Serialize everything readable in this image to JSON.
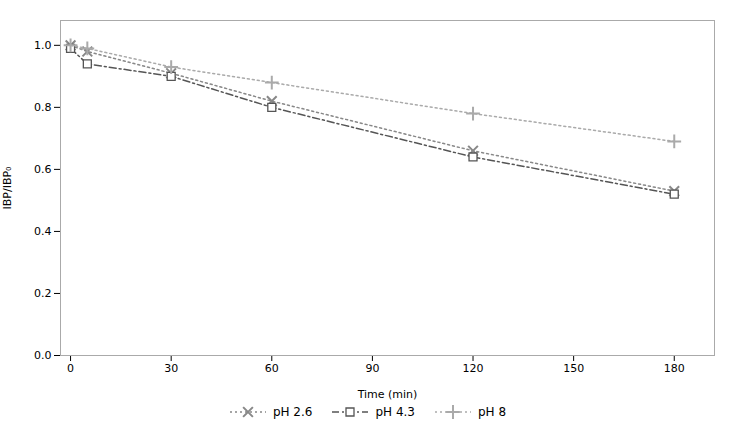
{
  "chart_data": {
    "type": "line",
    "x": [
      0,
      5,
      30,
      60,
      120,
      180
    ],
    "series": [
      {
        "name": "pH 2.6",
        "color": "#888888",
        "line_style": "dotted",
        "marker": "x",
        "values": [
          1.0,
          0.98,
          0.91,
          0.82,
          0.66,
          0.53
        ]
      },
      {
        "name": "pH 4.3",
        "color": "#555555",
        "line_style": "dashdot",
        "marker": "square",
        "values": [
          0.99,
          0.94,
          0.9,
          0.8,
          0.64,
          0.52
        ]
      },
      {
        "name": "pH 8",
        "color": "#aaaaaa",
        "line_style": "dotted",
        "marker": "plus",
        "values": [
          1.0,
          0.99,
          0.93,
          0.88,
          0.78,
          0.69
        ]
      }
    ],
    "xlabel": "Time (min)",
    "ylabel": "IBP/IBP₀",
    "xlim": [
      -3,
      192
    ],
    "ylim": [
      0.0,
      1.08
    ],
    "xticks": [
      0,
      30,
      60,
      90,
      120,
      150,
      180
    ],
    "yticks": [
      {
        "value": 0.0,
        "label": "0.0"
      },
      0.2,
      0.4,
      0.6,
      0.8,
      {
        "value": 1.0,
        "label": "1.0"
      }
    ],
    "grid": false,
    "legend": "bottom"
  }
}
